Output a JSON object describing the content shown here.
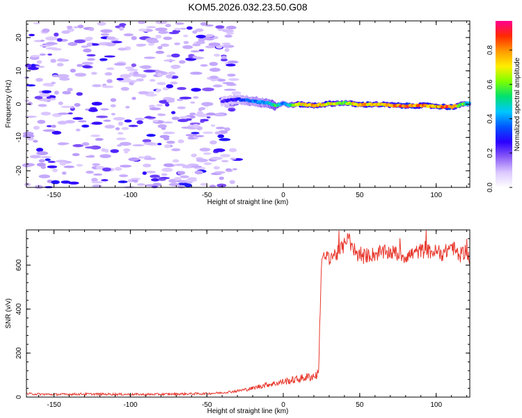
{
  "title": "KOM5.2026.032.23.50.G08",
  "chart_data": [
    {
      "type": "heatmap",
      "name": "spectrogram",
      "xlabel": "Height of straight line (km)",
      "ylabel": "Frequency (Hz)",
      "xlim": [
        -168,
        122
      ],
      "ylim": [
        -25,
        25
      ],
      "xticks": [
        -150,
        -100,
        -50,
        0,
        50,
        100
      ],
      "yticks": [
        -20,
        -10,
        0,
        10,
        20
      ],
      "grid": false,
      "colorbar": {
        "label": "Normalized spectral amplitude",
        "range": [
          0,
          0.97
        ],
        "ticks": [
          0.0,
          0.2,
          0.4,
          0.6,
          0.8
        ],
        "colors": [
          "#ffffff",
          "#dcc8ff",
          "#8b5cf6",
          "#2a00ff",
          "#0055ff",
          "#00c8ff",
          "#00e070",
          "#7cff00",
          "#ffee00",
          "#ff9a00",
          "#ff2a00",
          "#ff0090"
        ]
      },
      "signal_track": {
        "note_free": true,
        "x": [
          -40,
          -30,
          -20,
          -10,
          -5,
          0,
          5,
          10,
          20,
          30,
          40,
          50,
          60,
          70,
          80,
          90,
          100,
          110,
          120
        ],
        "freq_hz": [
          0.8,
          1.5,
          0.9,
          0.3,
          -0.5,
          0.2,
          -0.3,
          0.0,
          -0.4,
          0.1,
          0.4,
          -0.2,
          0.0,
          -0.3,
          -0.5,
          -0.4,
          -0.6,
          -0.9,
          0.2
        ],
        "amplitude": [
          0.25,
          0.3,
          0.4,
          0.45,
          0.6,
          0.35,
          0.55,
          0.7,
          0.8,
          0.75,
          0.6,
          0.85,
          0.75,
          0.8,
          0.9,
          0.85,
          0.8,
          0.9,
          0.5
        ]
      },
      "noise_region_x": [
        -168,
        -30
      ]
    },
    {
      "type": "line",
      "name": "snr",
      "xlabel": "Height of straight line (km)",
      "ylabel": "SNR (v/v)",
      "xlim": [
        -168,
        122
      ],
      "ylim": [
        0,
        760
      ],
      "xticks": [
        -150,
        -100,
        -50,
        0,
        50,
        100
      ],
      "yticks": [
        0,
        200,
        400,
        600
      ],
      "grid": false,
      "series": [
        {
          "color": "#e8362b",
          "x": [
            -168,
            -150,
            -130,
            -110,
            -90,
            -70,
            -50,
            -40,
            -30,
            -20,
            -15,
            -10,
            -5,
            0,
            5,
            10,
            15,
            20,
            23,
            24,
            25,
            30,
            35,
            40,
            42,
            45,
            50,
            60,
            70,
            80,
            90,
            100,
            105,
            110,
            115,
            120,
            122
          ],
          "y": [
            15,
            12,
            14,
            13,
            12,
            14,
            16,
            20,
            28,
            40,
            50,
            58,
            62,
            70,
            75,
            82,
            90,
            95,
            105,
            380,
            620,
            640,
            650,
            690,
            740,
            670,
            640,
            650,
            660,
            640,
            665,
            660,
            650,
            690,
            640,
            670,
            620
          ]
        }
      ]
    }
  ]
}
